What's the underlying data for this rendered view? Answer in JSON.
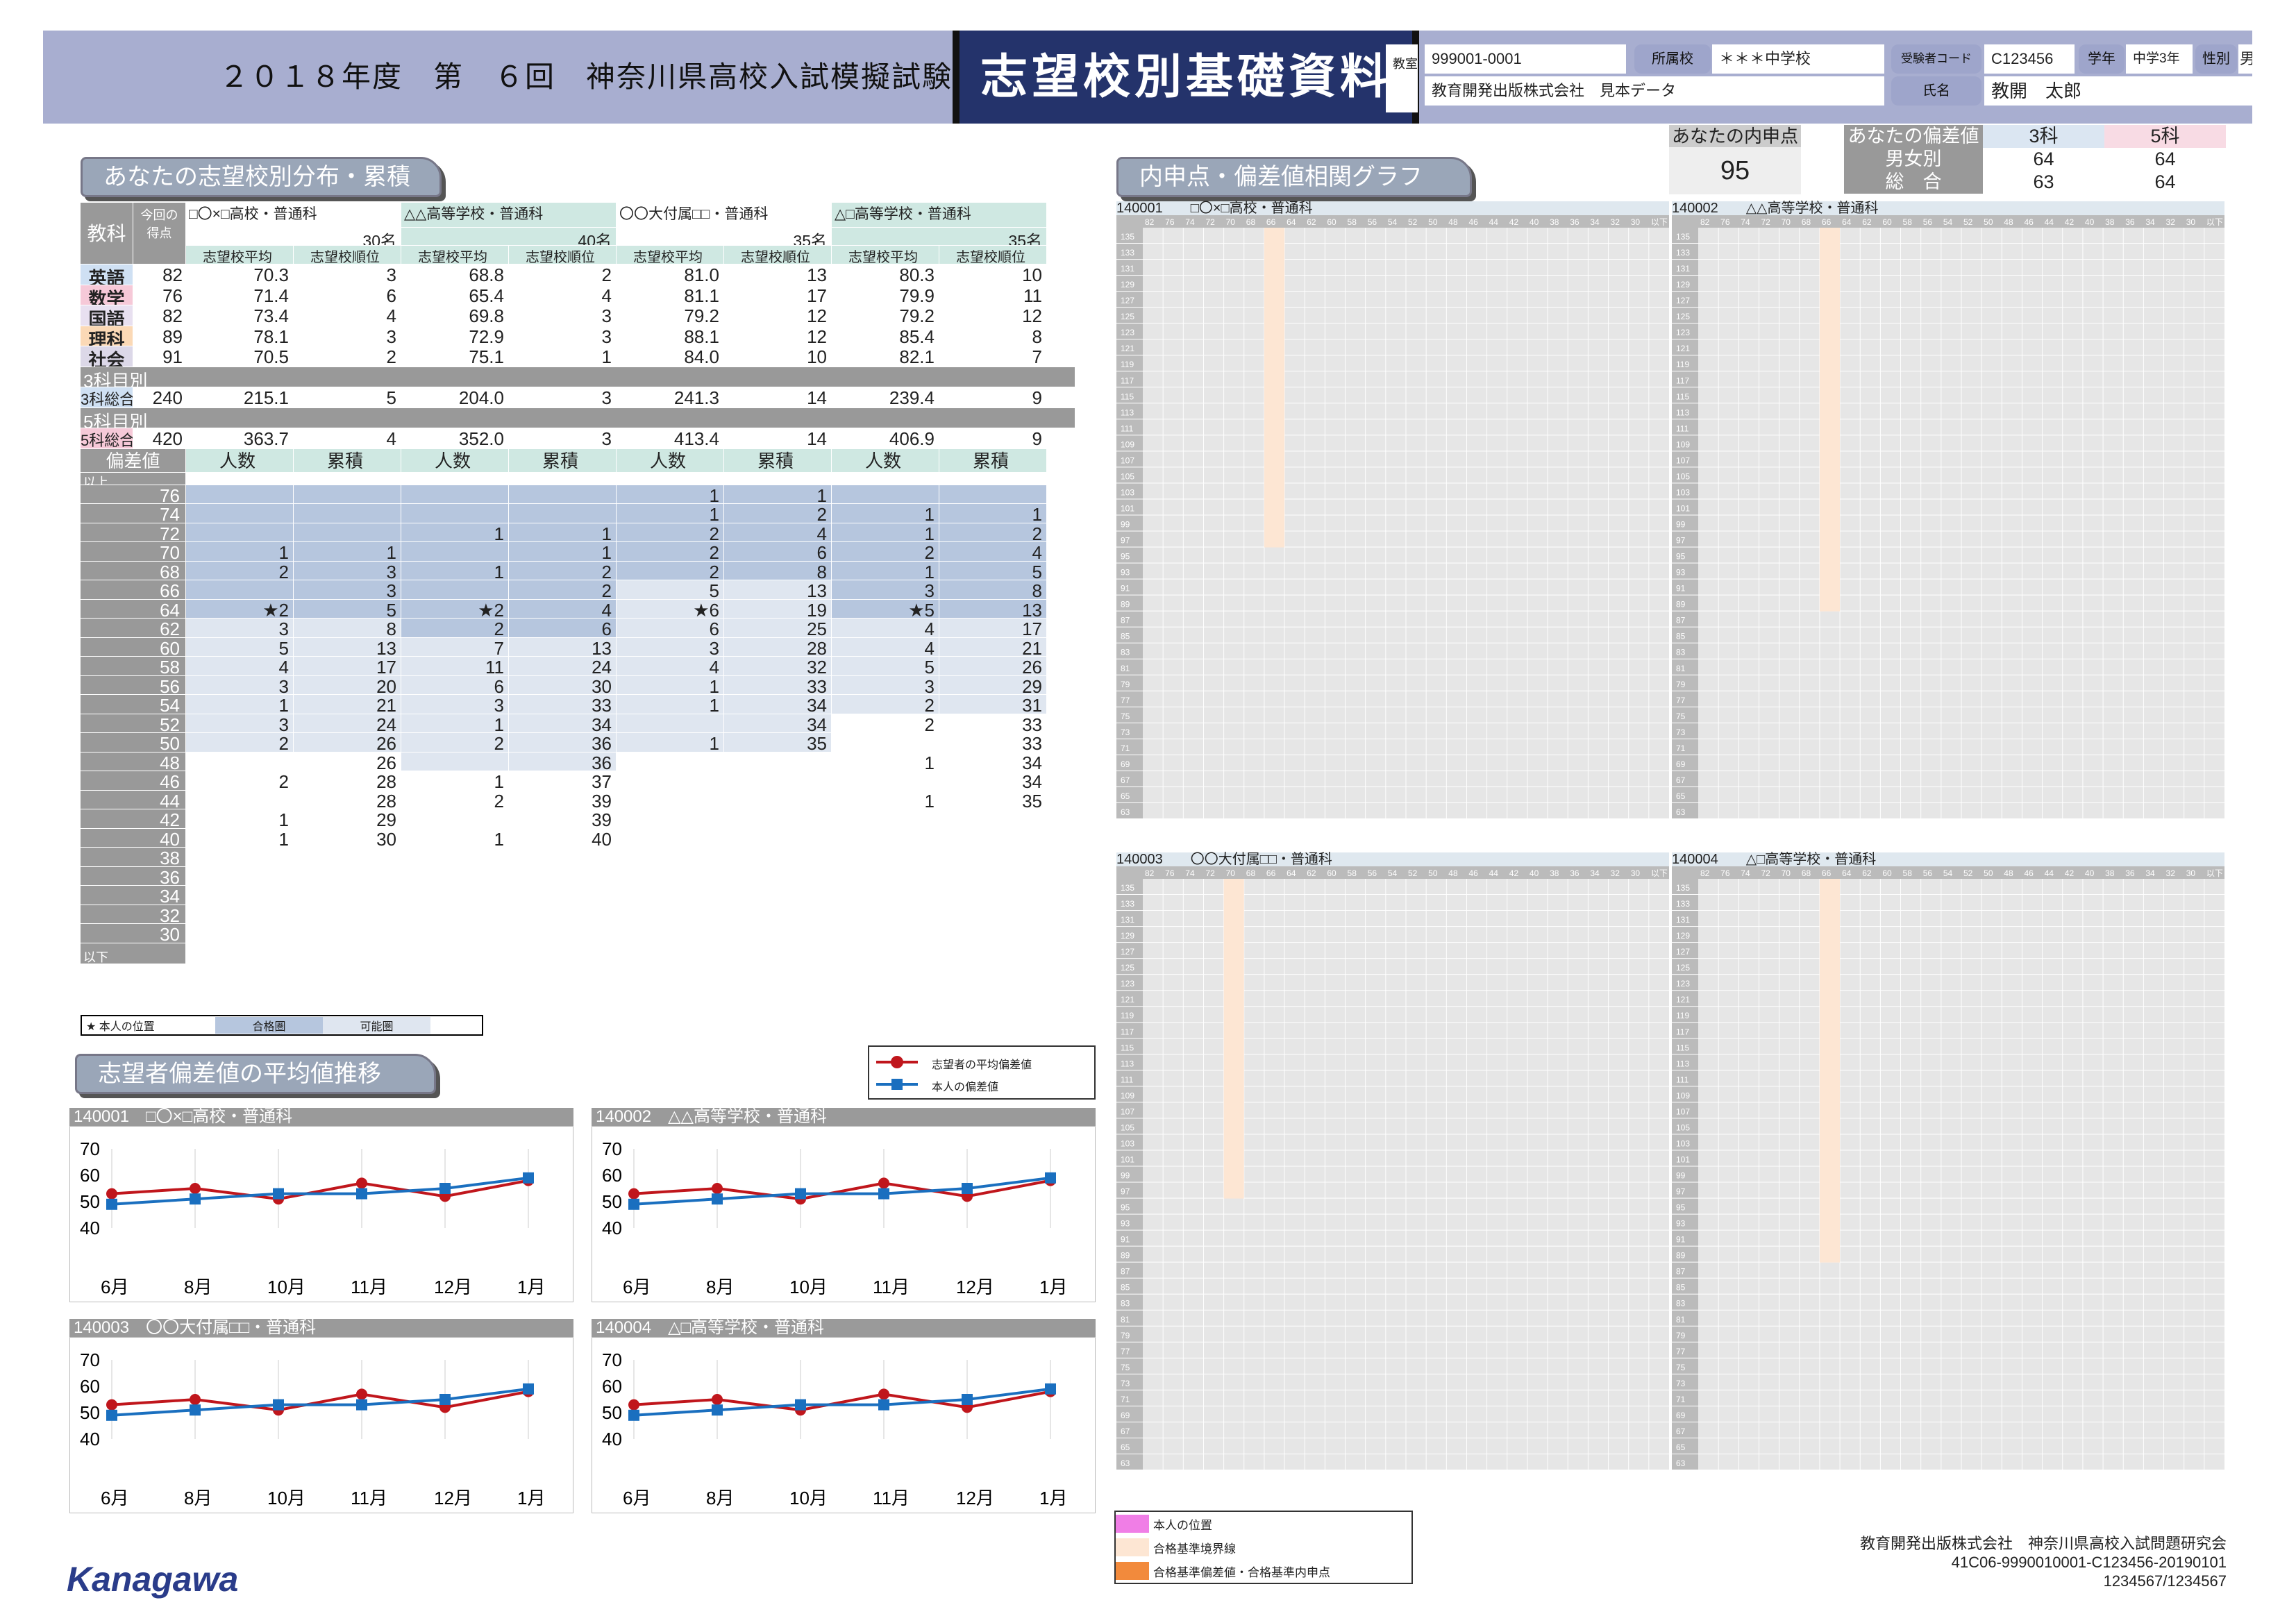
{
  "header": {
    "title": "２０１８年度　第　６回　神奈川県高校入試模擬試験",
    "doc_title": "志望校別基礎資料",
    "kyoshitsu_label": "教室",
    "exam_no": "999001-0001",
    "school_label": "所属校",
    "school": "＊＊＊中学校",
    "code_label": "受験者コード",
    "code": "C123456",
    "grade_label": "学年",
    "grade": "中学3年",
    "sex_label": "性別",
    "sex": "男",
    "org": "教育開発出版株式会社　見本データ",
    "name_label": "氏名",
    "name": "教開　太郎"
  },
  "naishin": {
    "label": "あなたの内申点",
    "value": "95"
  },
  "deviation": {
    "label": "あなたの偏差値",
    "col3": "3科",
    "col5": "5科",
    "rows": [
      {
        "k": "男女別",
        "a": "64",
        "b": "64"
      },
      {
        "k": "総　合",
        "a": "63",
        "b": "64"
      }
    ]
  },
  "sections": {
    "dist": "あなたの志望校別分布・累積",
    "corr": "内申点・偏差値相関グラフ",
    "trend": "志望者偏差値の平均値推移"
  },
  "table": {
    "subject_label": "教科",
    "score_label": "今回の得点",
    "schools": [
      {
        "name": "□〇×□高校・普通科",
        "count": "30名"
      },
      {
        "name": "△△高等学校・普通科",
        "count": "40名"
      },
      {
        "name": "〇〇大付属□□・普通科",
        "count": "35名"
      },
      {
        "name": "△□高等学校・普通科",
        "count": "35名"
      }
    ],
    "avg_label": "志望校平均",
    "rank_label": "志望校順位",
    "subjects": [
      {
        "name": "英語",
        "score": "82",
        "v": [
          "70.3",
          "3",
          "68.8",
          "2",
          "81.0",
          "13",
          "80.3",
          "10"
        ]
      },
      {
        "name": "数学",
        "score": "76",
        "v": [
          "71.4",
          "6",
          "65.4",
          "4",
          "81.1",
          "17",
          "79.9",
          "11"
        ]
      },
      {
        "name": "国語",
        "score": "82",
        "v": [
          "73.4",
          "4",
          "69.8",
          "3",
          "79.2",
          "12",
          "79.2",
          "12"
        ]
      },
      {
        "name": "理科",
        "score": "89",
        "v": [
          "78.1",
          "3",
          "72.9",
          "3",
          "88.1",
          "12",
          "85.4",
          "8"
        ]
      },
      {
        "name": "社会",
        "score": "91",
        "v": [
          "70.5",
          "2",
          "75.1",
          "1",
          "84.0",
          "10",
          "82.1",
          "7"
        ]
      }
    ],
    "sub3_label": "3科目別",
    "total3": {
      "name": "3科総合",
      "score": "240",
      "v": [
        "215.1",
        "5",
        "204.0",
        "3",
        "241.3",
        "14",
        "239.4",
        "9"
      ]
    },
    "sub5_label": "5科目別",
    "total5": {
      "name": "5科総合",
      "score": "420",
      "v": [
        "363.7",
        "4",
        "352.0",
        "3",
        "413.4",
        "14",
        "406.9",
        "9"
      ]
    },
    "dev_label": "偏差値",
    "count_label": "人数",
    "cum_label": "累積",
    "above": "以上",
    "below": "以下",
    "devrows": [
      {
        "d": "76",
        "v": [
          "",
          "",
          "",
          "",
          "1",
          "1",
          "",
          ""
        ]
      },
      {
        "d": "74",
        "v": [
          "",
          "",
          "",
          "",
          "1",
          "2",
          "1",
          "1"
        ]
      },
      {
        "d": "72",
        "v": [
          "",
          "",
          "1",
          "1",
          "2",
          "4",
          "1",
          "2"
        ]
      },
      {
        "d": "70",
        "v": [
          "1",
          "1",
          "",
          "1",
          "2",
          "6",
          "2",
          "4"
        ]
      },
      {
        "d": "68",
        "v": [
          "2",
          "3",
          "1",
          "2",
          "2",
          "8",
          "1",
          "5"
        ]
      },
      {
        "d": "66",
        "v": [
          "",
          "3",
          "",
          "2",
          "5",
          "13",
          "3",
          "8"
        ]
      },
      {
        "d": "64",
        "v": [
          "★2",
          "5",
          "★2",
          "4",
          "★6",
          "19",
          "★5",
          "13"
        ]
      },
      {
        "d": "62",
        "v": [
          "3",
          "8",
          "2",
          "6",
          "6",
          "25",
          "4",
          "17"
        ]
      },
      {
        "d": "60",
        "v": [
          "5",
          "13",
          "7",
          "13",
          "3",
          "28",
          "4",
          "21"
        ]
      },
      {
        "d": "58",
        "v": [
          "4",
          "17",
          "11",
          "24",
          "4",
          "32",
          "5",
          "26"
        ]
      },
      {
        "d": "56",
        "v": [
          "3",
          "20",
          "6",
          "30",
          "1",
          "33",
          "3",
          "29"
        ]
      },
      {
        "d": "54",
        "v": [
          "1",
          "21",
          "3",
          "33",
          "1",
          "34",
          "2",
          "31"
        ]
      },
      {
        "d": "52",
        "v": [
          "3",
          "24",
          "1",
          "34",
          "",
          "34",
          "2",
          "33"
        ]
      },
      {
        "d": "50",
        "v": [
          "2",
          "26",
          "2",
          "36",
          "1",
          "35",
          "",
          "33"
        ]
      },
      {
        "d": "48",
        "v": [
          "",
          "26",
          "",
          "36",
          "",
          "",
          "1",
          "34"
        ]
      },
      {
        "d": "46",
        "v": [
          "2",
          "28",
          "1",
          "37",
          "",
          "",
          "",
          "34"
        ]
      },
      {
        "d": "44",
        "v": [
          "",
          "28",
          "2",
          "39",
          "",
          "",
          "1",
          "35"
        ]
      },
      {
        "d": "42",
        "v": [
          "1",
          "29",
          "",
          "39",
          "",
          "",
          "",
          ""
        ]
      },
      {
        "d": "40",
        "v": [
          "1",
          "30",
          "1",
          "40",
          "",
          "",
          "",
          ""
        ]
      },
      {
        "d": "38",
        "v": [
          "",
          "",
          "",
          "",
          "",
          "",
          "",
          ""
        ]
      },
      {
        "d": "36",
        "v": [
          "",
          "",
          "",
          "",
          "",
          "",
          "",
          ""
        ]
      },
      {
        "d": "34",
        "v": [
          "",
          "",
          "",
          "",
          "",
          "",
          "",
          ""
        ]
      },
      {
        "d": "32",
        "v": [
          "",
          "",
          "",
          "",
          "",
          "",
          "",
          ""
        ]
      },
      {
        "d": "30",
        "v": [
          "",
          "",
          "",
          "",
          "",
          "",
          "",
          ""
        ]
      }
    ],
    "legend": {
      "self": "★ 本人の位置",
      "pass": "合格圏",
      "possible": "可能圏"
    }
  },
  "trend_legend": {
    "avg": "志望者の平均偏差値",
    "self": "本人の偏差値",
    "avg_color": "#c0161c",
    "self_color": "#1a6fbf"
  },
  "trend": {
    "months": [
      "6月",
      "8月",
      "10月",
      "11月",
      "12月",
      "1月"
    ],
    "yticks": [
      "70",
      "60",
      "50",
      "40"
    ],
    "charts": [
      {
        "title": "140001　□〇×□高校・普通科",
        "avg": [
          53,
          55,
          51,
          57,
          52,
          58
        ],
        "self": [
          49,
          51,
          53,
          53,
          55,
          59
        ]
      },
      {
        "title": "140002　△△高等学校・普通科",
        "avg": [
          53,
          55,
          51,
          57,
          52,
          58
        ],
        "self": [
          49,
          51,
          53,
          53,
          55,
          59
        ]
      },
      {
        "title": "140003　〇〇大付属□□・普通科",
        "avg": [
          53,
          55,
          51,
          57,
          52,
          58
        ],
        "self": [
          49,
          51,
          53,
          53,
          55,
          59
        ]
      },
      {
        "title": "140004　△□高等学校・普通科",
        "avg": [
          53,
          55,
          51,
          57,
          52,
          58
        ],
        "self": [
          49,
          51,
          53,
          53,
          55,
          59
        ]
      }
    ]
  },
  "corr": {
    "xticks": [
      "82",
      "76",
      "74",
      "72",
      "70",
      "68",
      "66",
      "64",
      "62",
      "60",
      "58",
      "56",
      "54",
      "52",
      "50",
      "48",
      "46",
      "44",
      "42",
      "40",
      "38",
      "36",
      "34",
      "32",
      "30",
      "以下"
    ],
    "yticks": [
      "135",
      "133",
      "131",
      "129",
      "127",
      "125",
      "123",
      "121",
      "119",
      "117",
      "115",
      "113",
      "111",
      "109",
      "107",
      "105",
      "103",
      "101",
      "99",
      "97",
      "95",
      "93",
      "91",
      "89",
      "87",
      "85",
      "83",
      "81",
      "79",
      "77",
      "75",
      "73",
      "71",
      "69",
      "67",
      "65",
      "63"
    ],
    "grids": [
      {
        "title": "140001　　□〇×□高校・普通科"
      },
      {
        "title": "140002　　△△高等学校・普通科"
      },
      {
        "title": "140003　　〇〇大付属□□・普通科"
      },
      {
        "title": "140004　　△□高等学校・普通科"
      }
    ]
  },
  "corr_legend": {
    "self": "本人の位置",
    "border": "合格基準境界線",
    "basis": "合格基準偏差値・合格基準内申点"
  },
  "footer": {
    "logo": "Kanagawa",
    "company": "教育開発出版株式会社　神奈川県高校入試問題研究会",
    "code1": "41C06-9990010001-C123456-20190101",
    "code2": "1234567/1234567"
  }
}
